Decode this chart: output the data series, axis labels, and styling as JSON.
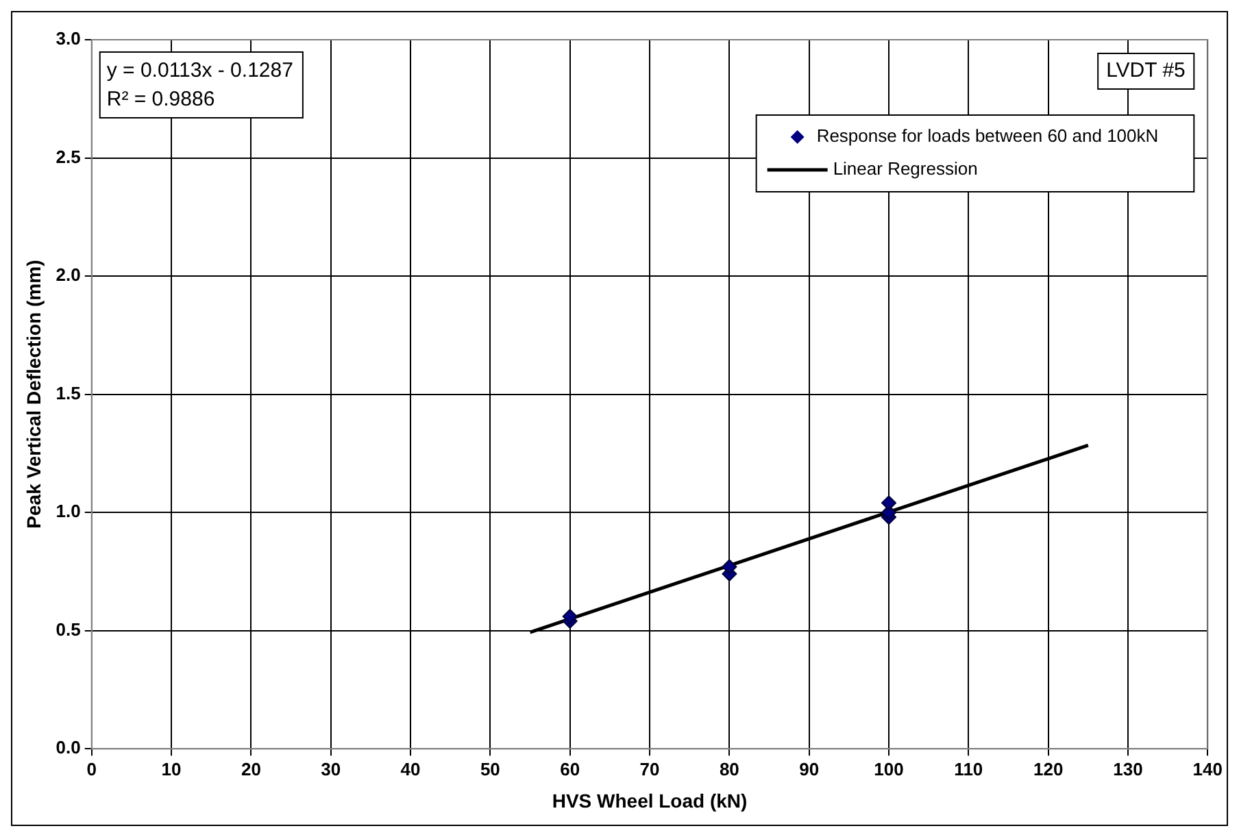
{
  "chart_data": {
    "type": "scatter",
    "xlabel": "HVS Wheel Load (kN)",
    "ylabel": "Peak Vertical Deflection (mm)",
    "series": [
      {
        "name": "Response for loads between 60 and 100kN",
        "type": "scatter",
        "color": "#000080",
        "marker": "diamond",
        "x": [
          60,
          60,
          80,
          80,
          100,
          100,
          100
        ],
        "values": [
          0.54,
          0.56,
          0.74,
          0.77,
          0.98,
          1.0,
          1.04
        ]
      },
      {
        "name": "Linear Regression",
        "type": "line",
        "color": "#000000",
        "marker": "none",
        "line_style": "solid",
        "x": [
          55,
          125
        ],
        "values": [
          0.493,
          1.284
        ]
      }
    ],
    "xlim": [
      0,
      140
    ],
    "xticks": [
      0,
      10,
      20,
      30,
      40,
      50,
      60,
      70,
      80,
      90,
      100,
      110,
      120,
      130,
      140
    ],
    "ylim": [
      0,
      3
    ],
    "yticks": [
      {
        "value": 0,
        "label": "0.0"
      },
      {
        "value": 0.5,
        "label": "0.5"
      },
      {
        "value": 1,
        "label": "1.0"
      },
      {
        "value": 1.5,
        "label": "1.5"
      },
      {
        "value": 2,
        "label": "2.0"
      },
      {
        "value": 2.5,
        "label": "2.5"
      },
      {
        "value": 3,
        "label": "3.0"
      }
    ],
    "grid": true,
    "legend": "top right",
    "annotations": [
      "y = 0.0113x - 0.1287",
      "R² = 0.9886",
      "LVDT #5"
    ]
  }
}
